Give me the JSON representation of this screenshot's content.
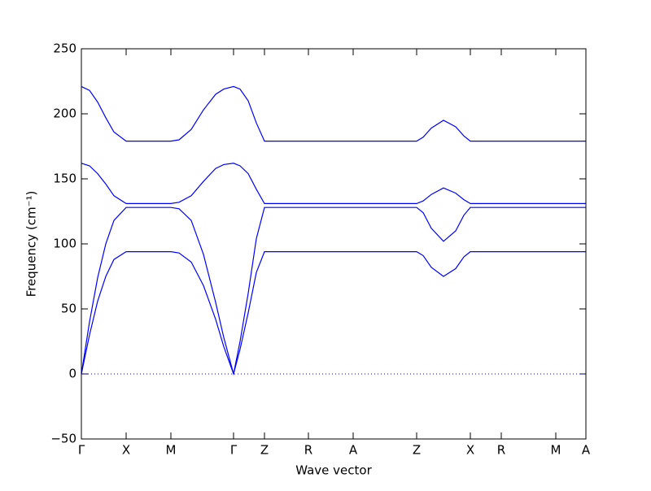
{
  "chart_data": {
    "type": "line",
    "xlabel": "Wave vector",
    "ylabel": "Frequency (cm⁻¹)",
    "xlim": [
      0,
      6.2
    ],
    "xticks": [
      {
        "value": 0,
        "label": "Γ"
      },
      {
        "value": 0.55,
        "label": "X"
      },
      {
        "value": 1.1,
        "label": "M"
      },
      {
        "value": 1.87,
        "label": "Γ"
      },
      {
        "value": 2.25,
        "label": "Z"
      },
      {
        "value": 2.79,
        "label": "R"
      },
      {
        "value": 3.34,
        "label": "A"
      },
      {
        "value": 4.12,
        "label": "Z"
      },
      {
        "value": 4.78,
        "label": "X"
      },
      {
        "value": 5.16,
        "label": "R"
      },
      {
        "value": 5.83,
        "label": "M"
      },
      {
        "value": 6.2,
        "label": "A"
      }
    ],
    "ylim": [
      -50,
      250
    ],
    "yticks": [
      {
        "value": -50,
        "label": "−50"
      },
      0,
      50,
      100,
      150,
      200,
      250
    ],
    "reference_line": 0,
    "x": [
      0,
      0.1,
      0.2,
      0.3,
      0.4,
      0.55,
      0.8,
      1.1,
      1.2,
      1.35,
      1.5,
      1.65,
      1.75,
      1.87,
      1.95,
      2.05,
      2.15,
      2.25,
      2.8,
      3.4,
      4.12,
      4.2,
      4.3,
      4.45,
      4.6,
      4.7,
      4.78,
      5.2,
      5.8,
      6.2
    ],
    "series": [
      {
        "color": "#0000ff",
        "values": [
          221,
          218,
          209,
          197,
          186,
          179,
          179,
          179,
          180,
          188,
          203,
          215,
          219,
          221,
          219,
          210,
          193,
          179,
          179,
          179,
          179,
          182,
          189,
          195,
          190,
          183,
          179,
          179,
          179,
          179
        ]
      },
      {
        "color": "#0000ff",
        "values": [
          162,
          160,
          154,
          146,
          137,
          131,
          131,
          131,
          132,
          137,
          148,
          158,
          161,
          162,
          160,
          154,
          142,
          131,
          131,
          131,
          131,
          133,
          138,
          143,
          139,
          134,
          131,
          131,
          131,
          131
        ]
      },
      {
        "color": "#0000ff",
        "values": [
          0,
          40,
          74,
          100,
          118,
          128,
          128,
          128,
          127,
          118,
          92,
          55,
          28,
          0,
          25,
          62,
          104,
          128,
          128,
          128,
          128,
          124,
          112,
          102,
          110,
          122,
          128,
          128,
          128,
          128
        ]
      },
      {
        "color": "#0000ff",
        "values": [
          0,
          30,
          56,
          75,
          88,
          94,
          94,
          94,
          93,
          86,
          68,
          42,
          21,
          0,
          19,
          47,
          78,
          94,
          94,
          94,
          94,
          91,
          82,
          75,
          81,
          90,
          94,
          94,
          94,
          94
        ]
      }
    ]
  }
}
